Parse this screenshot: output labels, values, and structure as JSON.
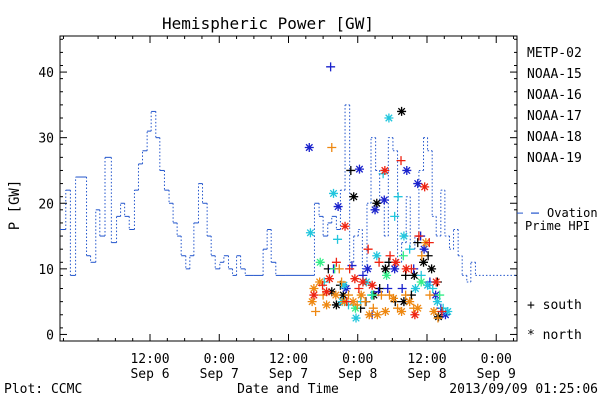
{
  "chart_data": {
    "type": "line",
    "title": "Hemispheric Power [GW]",
    "xlabel": "Date and Time",
    "ylabel": "P [GW]",
    "x_unit": "hours from Sep 6 00:00",
    "xlim": [
      -3.6,
      75.6
    ],
    "ylim": [
      -1,
      45.5
    ],
    "yticks": [
      0,
      10,
      20,
      30,
      40
    ],
    "xticks": [
      {
        "x": 12,
        "time": "12:00",
        "date": "Sep 6"
      },
      {
        "x": 24,
        "time": "0:00",
        "date": "Sep 7"
      },
      {
        "x": 36,
        "time": "12:00",
        "date": "Sep 7"
      },
      {
        "x": 48,
        "time": "0:00",
        "date": "Sep 8"
      },
      {
        "x": 60,
        "time": "12:00",
        "date": "Sep 8"
      },
      {
        "x": 72,
        "time": "0:00",
        "date": "Sep 9"
      }
    ],
    "ovation_label": [
      "Ovation",
      "Prime HPI"
    ],
    "ovation_color": "#2255cc",
    "ovation_current": 18.5,
    "ovation_steps": [
      [
        -3.6,
        16
      ],
      [
        -2.6,
        22
      ],
      [
        -1.8,
        9
      ],
      [
        -0.9,
        24
      ],
      [
        1.0,
        12
      ],
      [
        1.7,
        11
      ],
      [
        2.6,
        19
      ],
      [
        3.3,
        15
      ],
      [
        4.2,
        27
      ],
      [
        5.3,
        14
      ],
      [
        6.2,
        18
      ],
      [
        6.9,
        20
      ],
      [
        7.6,
        18
      ],
      [
        8.4,
        16
      ],
      [
        9.3,
        22
      ],
      [
        10.0,
        26
      ],
      [
        10.7,
        28
      ],
      [
        11.5,
        31
      ],
      [
        12.2,
        34
      ],
      [
        13.0,
        30
      ],
      [
        13.7,
        25
      ],
      [
        14.5,
        22
      ],
      [
        15.3,
        20
      ],
      [
        16.0,
        17
      ],
      [
        16.7,
        15
      ],
      [
        17.4,
        12
      ],
      [
        18.2,
        10
      ],
      [
        18.9,
        12
      ],
      [
        19.6,
        17
      ],
      [
        20.4,
        23
      ],
      [
        21.1,
        20
      ],
      [
        21.9,
        15
      ],
      [
        22.6,
        12
      ],
      [
        23.3,
        10
      ],
      [
        24.1,
        11
      ],
      [
        24.8,
        12
      ],
      [
        25.6,
        10
      ],
      [
        26.3,
        9
      ],
      [
        27.0,
        12
      ],
      [
        27.7,
        10
      ],
      [
        28.5,
        9
      ],
      [
        30.0,
        9
      ],
      [
        31.6,
        13
      ],
      [
        32.3,
        16
      ],
      [
        33.0,
        11
      ],
      [
        33.8,
        9
      ],
      [
        35.5,
        9
      ],
      [
        40.5,
        20
      ],
      [
        41.3,
        18
      ],
      [
        42.0,
        15
      ],
      [
        42.8,
        17
      ],
      [
        43.5,
        18
      ],
      [
        44.3,
        16
      ],
      [
        45.0,
        22
      ],
      [
        45.8,
        35
      ],
      [
        46.6,
        11
      ],
      [
        47.3,
        15
      ],
      [
        48.1,
        16
      ],
      [
        48.8,
        10
      ],
      [
        49.6,
        20
      ],
      [
        50.3,
        30
      ],
      [
        51.1,
        25
      ],
      [
        51.8,
        20
      ],
      [
        52.6,
        15
      ],
      [
        53.3,
        30
      ],
      [
        54.1,
        28
      ],
      [
        54.9,
        11
      ],
      [
        55.6,
        14
      ],
      [
        56.4,
        21
      ],
      [
        57.1,
        13
      ],
      [
        57.9,
        15
      ],
      [
        58.6,
        25
      ],
      [
        59.4,
        30
      ],
      [
        60.1,
        28
      ],
      [
        60.9,
        18
      ],
      [
        61.6,
        15
      ],
      [
        62.4,
        22
      ],
      [
        63.1,
        15
      ],
      [
        63.9,
        13
      ],
      [
        64.6,
        16
      ],
      [
        65.4,
        12
      ],
      [
        66.1,
        9
      ],
      [
        66.9,
        8
      ],
      [
        67.6,
        11
      ],
      [
        68.4,
        9
      ],
      [
        75.6,
        9
      ]
    ],
    "ovation_dashed_from": 45,
    "series": [
      {
        "name": "METP-02",
        "color": "#000000",
        "points": [
          [
            44.3,
            4.5
          ],
          [
            45.0,
            7.5
          ],
          [
            45.5,
            6
          ],
          [
            46.8,
            25
          ],
          [
            47.3,
            21
          ],
          [
            49.4,
            5
          ],
          [
            51.3,
            20
          ],
          [
            51.8,
            7
          ],
          [
            52.8,
            10
          ],
          [
            53.4,
            11
          ],
          [
            55.6,
            34
          ],
          [
            56.3,
            9
          ],
          [
            57.8,
            9
          ],
          [
            58.4,
            14
          ],
          [
            59.4,
            11
          ],
          [
            60.2,
            12
          ],
          [
            60.8,
            10
          ],
          [
            61.8,
            8
          ],
          [
            62.0,
            2.7
          ],
          [
            42.9,
            10
          ],
          [
            43.5,
            6.5
          ],
          [
            48.5,
            4
          ],
          [
            50.8,
            6
          ],
          [
            54.5,
            5
          ],
          [
            56.0,
            5
          ],
          [
            57.3,
            6
          ]
        ]
      },
      {
        "name": "NOAA-15",
        "color": "#1a22cc",
        "points": [
          [
            39.6,
            28.5
          ],
          [
            43.3,
            40.8
          ],
          [
            44.6,
            19.5
          ],
          [
            47.0,
            10.5
          ],
          [
            48.3,
            25.2
          ],
          [
            48.9,
            9
          ],
          [
            49.7,
            10
          ],
          [
            50.5,
            3
          ],
          [
            51.0,
            19
          ],
          [
            51.6,
            6.5
          ],
          [
            52.6,
            20.5
          ],
          [
            53.2,
            7
          ],
          [
            54.4,
            10
          ],
          [
            55.7,
            7
          ],
          [
            56.5,
            25
          ],
          [
            57.7,
            10
          ],
          [
            58.4,
            23
          ],
          [
            58.9,
            15
          ],
          [
            59.5,
            13
          ],
          [
            60.5,
            8
          ],
          [
            61.5,
            6
          ],
          [
            62.4,
            4
          ],
          [
            63.2,
            3
          ],
          [
            43.8,
            10
          ],
          [
            46.0,
            7
          ]
        ]
      },
      {
        "name": "NOAA-16",
        "color": "#22c6dd",
        "points": [
          [
            39.8,
            15.5
          ],
          [
            42.2,
            8
          ],
          [
            43.8,
            21.5
          ],
          [
            44.5,
            14.5
          ],
          [
            45.6,
            7.5
          ],
          [
            46.4,
            4.5
          ],
          [
            47.7,
            2.5
          ],
          [
            48.5,
            5
          ],
          [
            49.5,
            8
          ],
          [
            50.4,
            6
          ],
          [
            51.3,
            12
          ],
          [
            52.4,
            24.5
          ],
          [
            53.4,
            33
          ],
          [
            55.0,
            21
          ],
          [
            56.0,
            15
          ],
          [
            57.0,
            13
          ],
          [
            58.0,
            7
          ],
          [
            59.0,
            9
          ],
          [
            60.1,
            7.5
          ],
          [
            61.0,
            7
          ],
          [
            61.8,
            5
          ],
          [
            62.8,
            4
          ],
          [
            63.6,
            3.5
          ],
          [
            54.4,
            18
          ],
          [
            45.3,
            5
          ]
        ]
      },
      {
        "name": "NOAA-17",
        "color": "#33ee88",
        "points": [
          [
            41.5,
            11
          ],
          [
            44.0,
            10
          ],
          [
            47.6,
            4
          ],
          [
            50.6,
            6
          ],
          [
            53.0,
            9
          ],
          [
            55.9,
            12
          ],
          [
            59.0,
            8
          ],
          [
            62.2,
            6
          ]
        ]
      },
      {
        "name": "NOAA-18",
        "color": "#ee8811",
        "points": [
          [
            40.1,
            5
          ],
          [
            40.7,
            3.5
          ],
          [
            41.4,
            8
          ],
          [
            42.0,
            6
          ],
          [
            42.6,
            4.5
          ],
          [
            43.5,
            28.5
          ],
          [
            44.2,
            6
          ],
          [
            44.8,
            10
          ],
          [
            45.7,
            5
          ],
          [
            46.4,
            6
          ],
          [
            47.2,
            5
          ],
          [
            47.9,
            4.5
          ],
          [
            48.6,
            6
          ],
          [
            49.3,
            5
          ],
          [
            50.0,
            3
          ],
          [
            50.7,
            4
          ],
          [
            51.4,
            3
          ],
          [
            52.1,
            6
          ],
          [
            52.8,
            3.5
          ],
          [
            53.5,
            6
          ],
          [
            54.2,
            5.5
          ],
          [
            54.9,
            4
          ],
          [
            55.6,
            3.5
          ],
          [
            56.3,
            6
          ],
          [
            57.0,
            5
          ],
          [
            57.7,
            4
          ],
          [
            58.4,
            4
          ],
          [
            59.1,
            12
          ],
          [
            59.8,
            14
          ],
          [
            60.5,
            6
          ],
          [
            61.2,
            3.5
          ],
          [
            61.9,
            2.5
          ],
          [
            40.4,
            7
          ],
          [
            45.2,
            8
          ]
        ]
      },
      {
        "name": "NOAA-19",
        "color": "#ee2211",
        "points": [
          [
            40.4,
            6
          ],
          [
            41.9,
            7.5
          ],
          [
            42.6,
            6.5
          ],
          [
            44.3,
            11
          ],
          [
            45.8,
            16.5
          ],
          [
            46.6,
            10
          ],
          [
            47.5,
            8.5
          ],
          [
            48.2,
            7
          ],
          [
            48.9,
            8
          ],
          [
            49.8,
            13
          ],
          [
            50.5,
            7.5
          ],
          [
            51.7,
            11
          ],
          [
            52.7,
            25
          ],
          [
            53.6,
            12
          ],
          [
            54.6,
            11
          ],
          [
            55.5,
            26.5
          ],
          [
            56.4,
            10
          ],
          [
            57.3,
            10
          ],
          [
            57.9,
            3
          ],
          [
            58.6,
            15
          ],
          [
            59.6,
            22.5
          ],
          [
            60.4,
            14
          ],
          [
            61.6,
            8
          ],
          [
            62.6,
            3.5
          ],
          [
            43.1,
            8.5
          ],
          [
            46.1,
            5
          ]
        ]
      }
    ],
    "legend_symbols": [
      {
        "symbol": "+",
        "label": "south"
      },
      {
        "symbol": "*",
        "label": "north"
      }
    ]
  },
  "footer": {
    "plot_label": "Plot: CCMC",
    "timestamp": "2013/09/09 01:25:06"
  }
}
